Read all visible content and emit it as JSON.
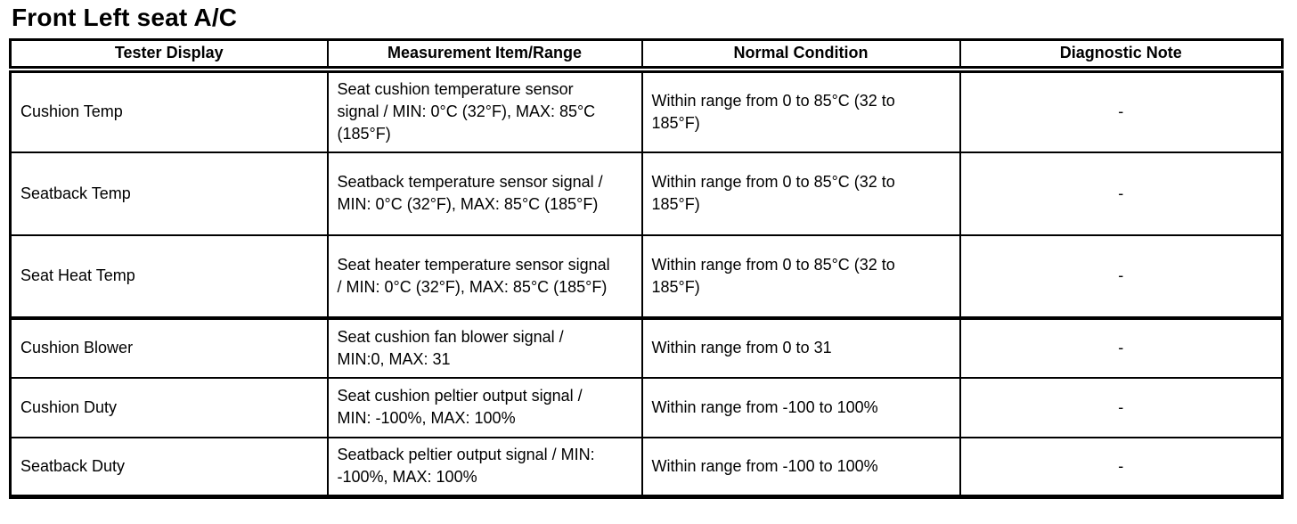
{
  "page": {
    "title": "Front Left seat A/C"
  },
  "table": {
    "headers": {
      "tester_display": "Tester Display",
      "measurement": "Measurement Item/Range",
      "condition": "Normal Condition",
      "note": "Diagnostic Note"
    },
    "rows": [
      {
        "display": "Cushion Temp",
        "measurement": "Seat cushion temperature sensor signal / MIN: 0°C (32°F), MAX: 85°C (185°F)",
        "condition": "Within range from 0 to 85°C (32 to 185°F)",
        "note": "-"
      },
      {
        "display": "Seatback Temp",
        "measurement": "Seatback temperature sensor signal / MIN: 0°C (32°F), MAX: 85°C (185°F)",
        "condition": "Within range from 0 to 85°C (32 to 185°F)",
        "note": "-"
      },
      {
        "display": "Seat Heat Temp",
        "measurement": "Seat heater temperature sensor signal / MIN: 0°C (32°F), MAX: 85°C (185°F)",
        "condition": "Within range from 0 to 85°C (32 to 185°F)",
        "note": "-"
      },
      {
        "display": "Cushion Blower",
        "measurement": "Seat cushion fan blower signal / MIN:0, MAX: 31",
        "condition": "Within range from 0 to 31",
        "note": "-"
      },
      {
        "display": "Cushion Duty",
        "measurement": "Seat cushion peltier output signal / MIN: -100%, MAX: 100%",
        "condition": "Within range from -100 to 100%",
        "note": "-"
      },
      {
        "display": "Seatback Duty",
        "measurement": "Seatback peltier output signal / MIN: -100%, MAX: 100%",
        "condition": "Within range from -100 to 100%",
        "note": "-"
      }
    ]
  }
}
